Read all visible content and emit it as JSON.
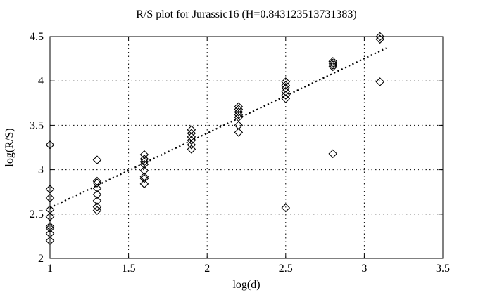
{
  "figure": {
    "background_color": "#ffffff",
    "foreground_color": "#000000"
  },
  "chart_data": {
    "type": "scatter",
    "title": "R/S plot for Jurassic16 (H=0.843123513731383)",
    "hurst_exponent": "0.843123513731383",
    "dataset_name": "Jurassic16",
    "xlabel": "log(d)",
    "ylabel": "log(R/S)",
    "xlim": [
      1,
      3.5
    ],
    "ylim": [
      2,
      4.5
    ],
    "xtick_values": [
      1,
      1.5,
      2,
      2.5,
      3,
      3.5
    ],
    "xtick_labels": [
      "1",
      "1.5",
      "2",
      "2.5",
      "3",
      "3.5"
    ],
    "ytick_values": [
      2,
      2.5,
      3,
      3.5,
      4,
      4.5
    ],
    "ytick_labels": [
      "2",
      "2.5",
      "3",
      "3.5",
      "4",
      "4.5"
    ],
    "grid": "dotted",
    "legend": "none",
    "marker": "open-diamond",
    "groups": [
      {
        "x": 1.0,
        "y": [
          3.28,
          2.78,
          2.68,
          2.55,
          2.47,
          2.36,
          2.34,
          2.28,
          2.2
        ]
      },
      {
        "x": 1.3,
        "y": [
          3.11,
          2.87,
          2.85,
          2.79,
          2.72,
          2.65,
          2.58,
          2.54
        ]
      },
      {
        "x": 1.6,
        "y": [
          3.17,
          3.12,
          3.09,
          3.06,
          2.99,
          2.92,
          2.9,
          2.84
        ]
      },
      {
        "x": 1.9,
        "y": [
          3.45,
          3.41,
          3.37,
          3.33,
          3.28,
          3.23
        ]
      },
      {
        "x": 2.2,
        "y": [
          3.71,
          3.68,
          3.65,
          3.62,
          3.59,
          3.5,
          3.42
        ]
      },
      {
        "x": 2.5,
        "y": [
          3.99,
          3.95,
          3.92,
          3.88,
          3.84,
          3.8,
          2.57
        ]
      },
      {
        "x": 2.8,
        "y": [
          4.22,
          4.2,
          4.18,
          4.16,
          3.18
        ]
      },
      {
        "x": 3.1,
        "y": [
          4.5,
          4.47,
          3.99
        ]
      }
    ],
    "trend_line": {
      "x1": 1.0,
      "y1": 2.57,
      "x2": 3.14,
      "y2": 4.37,
      "style": "dotted"
    }
  }
}
